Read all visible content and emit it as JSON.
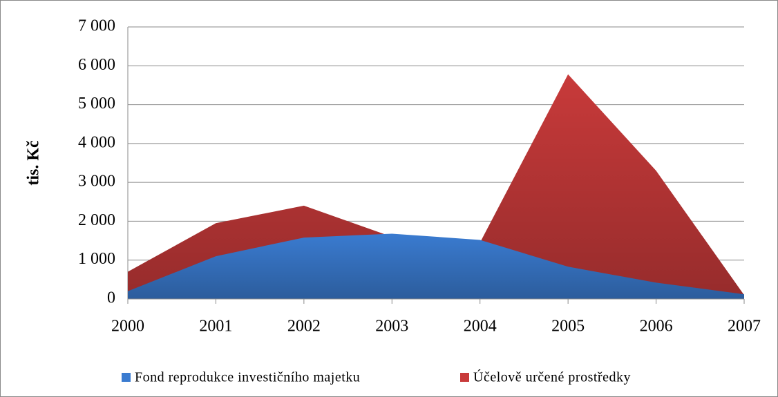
{
  "chart_data": {
    "type": "area",
    "ylabel": "tis. Kč",
    "categories": [
      "2000",
      "2001",
      "2002",
      "2003",
      "2004",
      "2005",
      "2006",
      "2007"
    ],
    "series": [
      {
        "name": "Fond reprodukce investičního majetku",
        "color": "#3a7bd0",
        "values": [
          200,
          1100,
          1580,
          1680,
          1520,
          830,
          420,
          120
        ]
      },
      {
        "name": "Účelově určené prostředky",
        "color": "#c83a3a",
        "values": [
          700,
          1950,
          2400,
          1600,
          1450,
          5780,
          3300,
          100
        ]
      }
    ],
    "ylim": [
      0,
      7000
    ],
    "yticks": [
      0,
      {
        "value": 1000,
        "label": "1 000"
      },
      {
        "value": 2000,
        "label": "2 000"
      },
      {
        "value": 3000,
        "label": "3 000"
      },
      {
        "value": 4000,
        "label": "4 000"
      },
      {
        "value": 5000,
        "label": "5 000"
      },
      {
        "value": 6000,
        "label": "6 000"
      },
      {
        "value": 7000,
        "label": "7 000"
      }
    ],
    "grid": true,
    "legend": "bottom"
  }
}
